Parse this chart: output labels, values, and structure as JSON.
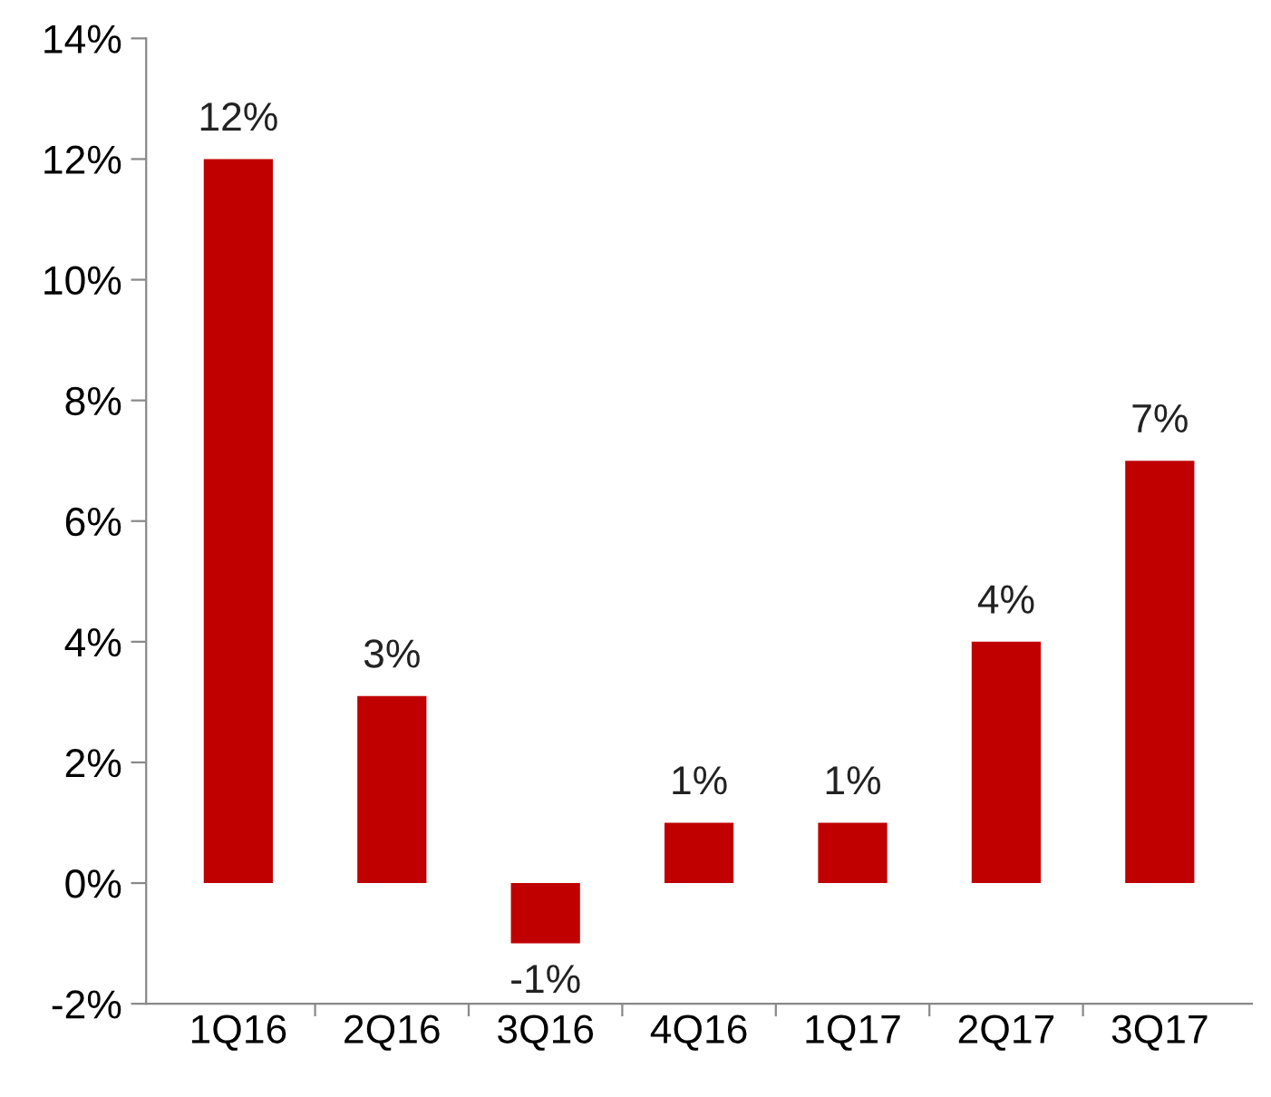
{
  "chart_data": {
    "type": "bar",
    "categories": [
      "1Q16",
      "2Q16",
      "3Q16",
      "4Q16",
      "1Q17",
      "2Q17",
      "3Q17"
    ],
    "values": [
      12,
      3.1,
      -1,
      1,
      1,
      4,
      7
    ],
    "value_labels": [
      "12%",
      "3%",
      "-1%",
      "1%",
      "1%",
      "4%",
      "7%"
    ],
    "color": "#c00000",
    "ylim": [
      -2,
      14
    ],
    "yticks": [
      {
        "value": -2,
        "label": "-2%"
      },
      {
        "value": 0,
        "label": "0%"
      },
      {
        "value": 2,
        "label": "2%"
      },
      {
        "value": 4,
        "label": "4%"
      },
      {
        "value": 6,
        "label": "6%"
      },
      {
        "value": 8,
        "label": "8%"
      },
      {
        "value": 10,
        "label": "10%"
      },
      {
        "value": 12,
        "label": "12%"
      },
      {
        "value": 14,
        "label": "14%"
      }
    ],
    "grid": false,
    "legend": false
  }
}
